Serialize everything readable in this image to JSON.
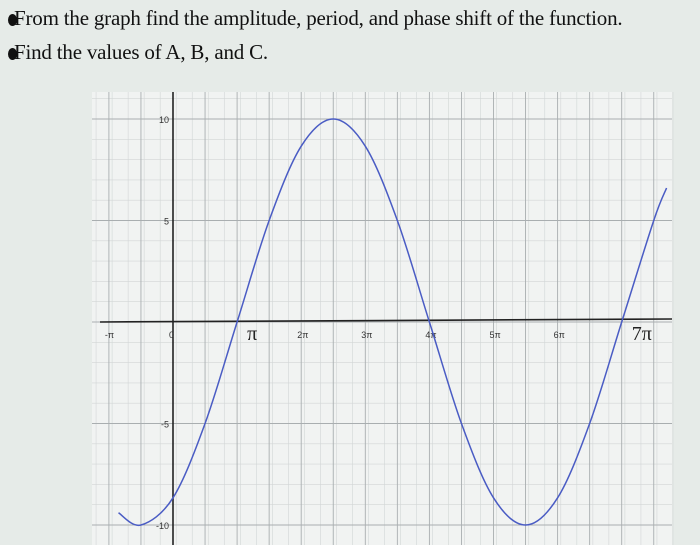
{
  "question": {
    "line1": "From the graph find the amplitude, period, and phase shift of the function.",
    "line2": "Find the values of A, B, and C."
  },
  "chart_data": {
    "type": "line",
    "title": "",
    "xlabel": "",
    "ylabel": "",
    "x_unit": "π",
    "xlim": [
      -1.2,
      7.8
    ],
    "ylim": [
      -10.5,
      10.5
    ],
    "grid": true,
    "x_ticks": [
      {
        "value": -1,
        "label": "-π"
      },
      {
        "value": 0,
        "label": "0"
      },
      {
        "value": 1,
        "label": "π"
      },
      {
        "value": 2,
        "label": "2π"
      },
      {
        "value": 3,
        "label": "3π"
      },
      {
        "value": 4,
        "label": "4π"
      },
      {
        "value": 5,
        "label": "5π"
      },
      {
        "value": 6,
        "label": "6π"
      },
      {
        "value": 7,
        "label": "7π"
      }
    ],
    "y_ticks": [
      {
        "value": 10,
        "label": "10"
      },
      {
        "value": 5,
        "label": "5"
      },
      {
        "value": -5,
        "label": "-5"
      },
      {
        "value": -10,
        "label": "-10"
      }
    ],
    "series": [
      {
        "color": "#4a5cc4",
        "x": [
          -0.85,
          -0.5,
          0,
          0.5,
          1,
          1.5,
          2,
          2.5,
          3,
          3.5,
          4,
          4.5,
          5,
          5.5,
          6,
          6.5,
          7,
          7.5,
          7.7
        ],
        "y": [
          -9.4,
          -10,
          -8.66,
          -5,
          0,
          5,
          8.66,
          10,
          8.66,
          5,
          0,
          -5,
          -8.66,
          -10,
          -8.66,
          -5,
          0,
          5,
          6.6
        ]
      }
    ]
  }
}
